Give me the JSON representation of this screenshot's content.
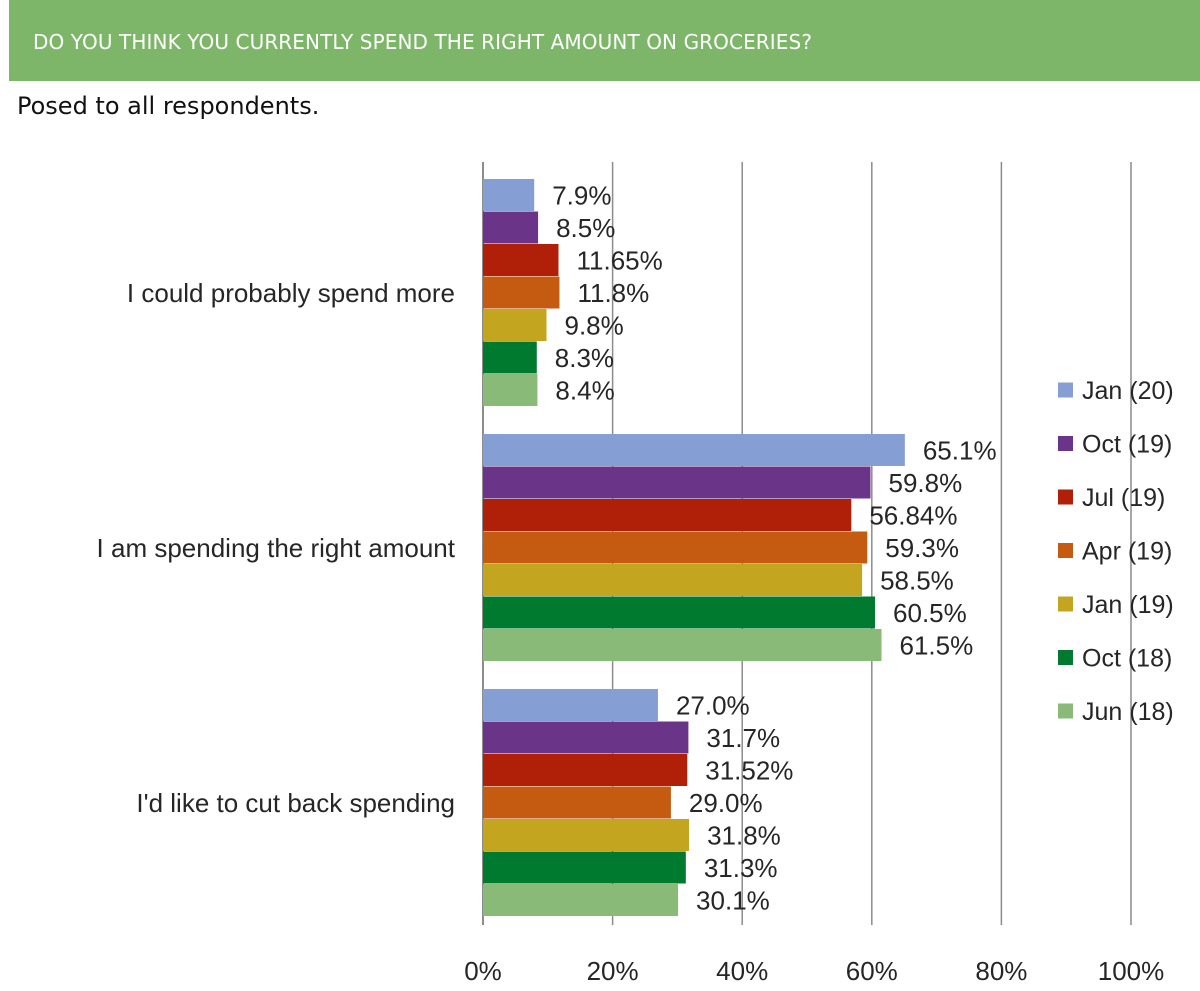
{
  "header": {
    "title": "DO YOU THINK YOU CURRENTLY SPEND THE RIGHT AMOUNT ON GROCERIES?",
    "subtitle": "Posed to all respondents."
  },
  "colors": {
    "banner": "#7db669",
    "banner_text": "#ffffff",
    "gridline": "#8c8c8c"
  },
  "chart_data": {
    "type": "bar",
    "orientation": "horizontal",
    "categories": [
      "I could probably spend more",
      "I am spending the right amount",
      "I'd like to cut back spending"
    ],
    "series": [
      {
        "name": "Jan (20)",
        "color": "#859fd4",
        "values": [
          7.9,
          65.1,
          27.0
        ],
        "labels": [
          "7.9%",
          "65.1%",
          "27.0%"
        ]
      },
      {
        "name": "Oct (19)",
        "color": "#6a3589",
        "values": [
          8.5,
          59.8,
          31.7
        ],
        "labels": [
          "8.5%",
          "59.8%",
          "31.7%"
        ]
      },
      {
        "name": "Jul (19)",
        "color": "#b01f07",
        "values": [
          11.65,
          56.84,
          31.52
        ],
        "labels": [
          "11.65%",
          "56.84%",
          "31.52%"
        ]
      },
      {
        "name": "Apr (19)",
        "color": "#c55a11",
        "values": [
          11.8,
          59.3,
          29.0
        ],
        "labels": [
          "11.8%",
          "59.3%",
          "29.0%"
        ]
      },
      {
        "name": "Jan (19)",
        "color": "#c4a51f",
        "values": [
          9.8,
          58.5,
          31.8
        ],
        "labels": [
          "9.8%",
          "58.5%",
          "31.8%"
        ]
      },
      {
        "name": "Oct (18)",
        "color": "#007a2e",
        "values": [
          8.3,
          60.5,
          31.3
        ],
        "labels": [
          "8.3%",
          "60.5%",
          "31.3%"
        ]
      },
      {
        "name": "Jun (18)",
        "color": "#8aba78",
        "values": [
          8.4,
          61.5,
          30.1
        ],
        "labels": [
          "8.4%",
          "61.5%",
          "30.1%"
        ]
      }
    ],
    "xlim": [
      0,
      100
    ],
    "xticks": [
      "0%",
      "20%",
      "40%",
      "60%",
      "80%",
      "100%"
    ],
    "grid": true,
    "legend_position": "right"
  }
}
